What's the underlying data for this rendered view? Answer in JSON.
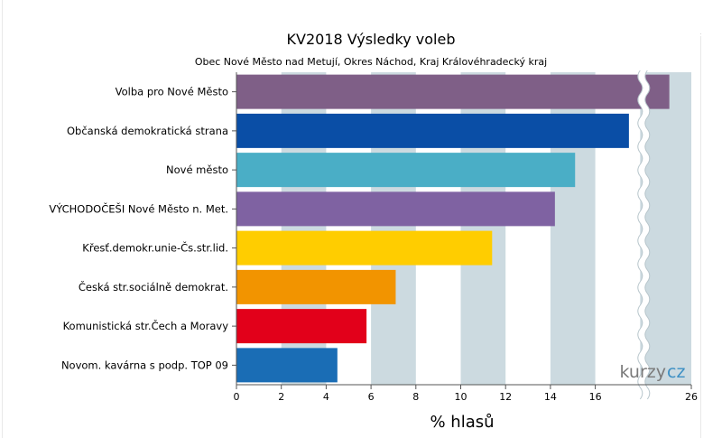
{
  "chart_data": {
    "type": "bar",
    "orientation": "horizontal",
    "title": "KV2018 Výsledky voleb",
    "subtitle": "Obec Nové Město nad Metují, Okres Náchod, Kraj Královéhradecký kraj",
    "xlabel": "% hlasů",
    "ylabel": "",
    "categories": [
      "Volba pro Nové Město",
      "Občanská demokratická strana",
      "Nové město",
      "VÝCHODOČEŠI Nové Město n. Met.",
      "Křesť.demokr.unie-Čs.str.lid.",
      "Česká str.sociálně demokrat.",
      "Komunistická str.Čech a Moravy",
      "Novom. kavárna s podp. TOP 09"
    ],
    "values": [
      25.0,
      17.5,
      15.1,
      14.2,
      11.4,
      7.1,
      5.8,
      4.5
    ],
    "colors": [
      "#7f5f87",
      "#0a4ea6",
      "#4aaec6",
      "#7f62a2",
      "#ffcd00",
      "#f29400",
      "#e2001a",
      "#1a6db5"
    ],
    "xticks": [
      "0",
      "2",
      "4",
      "6",
      "8",
      "10",
      "12",
      "14",
      "16",
      "26"
    ],
    "xlim": [
      0,
      26
    ],
    "axis_break": {
      "from": 18,
      "to": 24
    },
    "grid": "alternating vertical bands",
    "band_color": "#ccdae0",
    "watermark": "kurzy.cz"
  }
}
